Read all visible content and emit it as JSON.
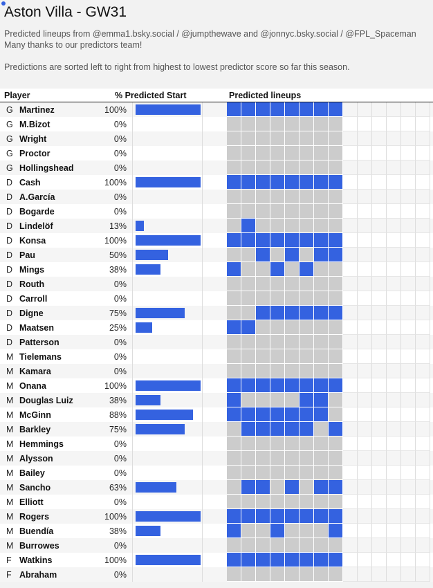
{
  "title": "Aston Villa - GW31",
  "subtitle_1": "Predicted lineups from @emma1.bsky.social / @jumpthewave and @jonnyc.bsky.social / @FPL_Spaceman",
  "subtitle_2": "Many thanks to our predictors team!",
  "subtitle_3": "Predictions are sorted left to right from highest to lowest predictor score so far this season.",
  "headers": {
    "player": "Player",
    "pct": "% Predicted Start",
    "lineups": "Predicted lineups"
  },
  "colors": {
    "accent": "#3462e0",
    "predictor_column": "#cccccc"
  },
  "chart_data": {
    "type": "table",
    "predictor_count": 8,
    "extra_empty_columns": 6,
    "rows": [
      {
        "pos": "G",
        "name": "Martinez",
        "pct": "100%",
        "value": 100,
        "starts": [
          1,
          1,
          1,
          1,
          1,
          1,
          1,
          1
        ]
      },
      {
        "pos": "G",
        "name": "M.Bizot",
        "pct": "0%",
        "value": 0,
        "starts": [
          0,
          0,
          0,
          0,
          0,
          0,
          0,
          0
        ]
      },
      {
        "pos": "G",
        "name": "Wright",
        "pct": "0%",
        "value": 0,
        "starts": [
          0,
          0,
          0,
          0,
          0,
          0,
          0,
          0
        ]
      },
      {
        "pos": "G",
        "name": "Proctor",
        "pct": "0%",
        "value": 0,
        "starts": [
          0,
          0,
          0,
          0,
          0,
          0,
          0,
          0
        ]
      },
      {
        "pos": "G",
        "name": "Hollingshead",
        "pct": "0%",
        "value": 0,
        "starts": [
          0,
          0,
          0,
          0,
          0,
          0,
          0,
          0
        ]
      },
      {
        "pos": "D",
        "name": "Cash",
        "pct": "100%",
        "value": 100,
        "starts": [
          1,
          1,
          1,
          1,
          1,
          1,
          1,
          1
        ]
      },
      {
        "pos": "D",
        "name": "A.García",
        "pct": "0%",
        "value": 0,
        "starts": [
          0,
          0,
          0,
          0,
          0,
          0,
          0,
          0
        ]
      },
      {
        "pos": "D",
        "name": "Bogarde",
        "pct": "0%",
        "value": 0,
        "starts": [
          0,
          0,
          0,
          0,
          0,
          0,
          0,
          0
        ]
      },
      {
        "pos": "D",
        "name": "Lindelöf",
        "pct": "13%",
        "value": 13,
        "starts": [
          0,
          1,
          0,
          0,
          0,
          0,
          0,
          0
        ]
      },
      {
        "pos": "D",
        "name": "Konsa",
        "pct": "100%",
        "value": 100,
        "starts": [
          1,
          1,
          1,
          1,
          1,
          1,
          1,
          1
        ]
      },
      {
        "pos": "D",
        "name": "Pau",
        "pct": "50%",
        "value": 50,
        "starts": [
          0,
          0,
          1,
          0,
          1,
          0,
          1,
          1
        ]
      },
      {
        "pos": "D",
        "name": "Mings",
        "pct": "38%",
        "value": 38,
        "starts": [
          1,
          0,
          0,
          1,
          0,
          1,
          0,
          0
        ]
      },
      {
        "pos": "D",
        "name": "Routh",
        "pct": "0%",
        "value": 0,
        "starts": [
          0,
          0,
          0,
          0,
          0,
          0,
          0,
          0
        ]
      },
      {
        "pos": "D",
        "name": "Carroll",
        "pct": "0%",
        "value": 0,
        "starts": [
          0,
          0,
          0,
          0,
          0,
          0,
          0,
          0
        ]
      },
      {
        "pos": "D",
        "name": "Digne",
        "pct": "75%",
        "value": 75,
        "starts": [
          0,
          0,
          1,
          1,
          1,
          1,
          1,
          1
        ]
      },
      {
        "pos": "D",
        "name": "Maatsen",
        "pct": "25%",
        "value": 25,
        "starts": [
          1,
          1,
          0,
          0,
          0,
          0,
          0,
          0
        ]
      },
      {
        "pos": "D",
        "name": "Patterson",
        "pct": "0%",
        "value": 0,
        "starts": [
          0,
          0,
          0,
          0,
          0,
          0,
          0,
          0
        ]
      },
      {
        "pos": "M",
        "name": "Tielemans",
        "pct": "0%",
        "value": 0,
        "starts": [
          0,
          0,
          0,
          0,
          0,
          0,
          0,
          0
        ]
      },
      {
        "pos": "M",
        "name": "Kamara",
        "pct": "0%",
        "value": 0,
        "starts": [
          0,
          0,
          0,
          0,
          0,
          0,
          0,
          0
        ]
      },
      {
        "pos": "M",
        "name": "Onana",
        "pct": "100%",
        "value": 100,
        "starts": [
          1,
          1,
          1,
          1,
          1,
          1,
          1,
          1
        ]
      },
      {
        "pos": "M",
        "name": "Douglas Luiz",
        "pct": "38%",
        "value": 38,
        "starts": [
          1,
          0,
          0,
          0,
          0,
          1,
          1,
          0
        ]
      },
      {
        "pos": "M",
        "name": "McGinn",
        "pct": "88%",
        "value": 88,
        "starts": [
          1,
          1,
          1,
          1,
          1,
          1,
          1,
          0
        ]
      },
      {
        "pos": "M",
        "name": "Barkley",
        "pct": "75%",
        "value": 75,
        "starts": [
          0,
          1,
          1,
          1,
          1,
          1,
          0,
          1
        ]
      },
      {
        "pos": "M",
        "name": "Hemmings",
        "pct": "0%",
        "value": 0,
        "starts": [
          0,
          0,
          0,
          0,
          0,
          0,
          0,
          0
        ]
      },
      {
        "pos": "M",
        "name": "Alysson",
        "pct": "0%",
        "value": 0,
        "starts": [
          0,
          0,
          0,
          0,
          0,
          0,
          0,
          0
        ]
      },
      {
        "pos": "M",
        "name": "Bailey",
        "pct": "0%",
        "value": 0,
        "starts": [
          0,
          0,
          0,
          0,
          0,
          0,
          0,
          0
        ]
      },
      {
        "pos": "M",
        "name": "Sancho",
        "pct": "63%",
        "value": 63,
        "starts": [
          0,
          1,
          1,
          0,
          1,
          0,
          1,
          1
        ]
      },
      {
        "pos": "M",
        "name": "Elliott",
        "pct": "0%",
        "value": 0,
        "starts": [
          0,
          0,
          0,
          0,
          0,
          0,
          0,
          0
        ]
      },
      {
        "pos": "M",
        "name": "Rogers",
        "pct": "100%",
        "value": 100,
        "starts": [
          1,
          1,
          1,
          1,
          1,
          1,
          1,
          1
        ]
      },
      {
        "pos": "M",
        "name": "Buendía",
        "pct": "38%",
        "value": 38,
        "starts": [
          1,
          0,
          0,
          1,
          0,
          0,
          0,
          1
        ]
      },
      {
        "pos": "M",
        "name": "Burrowes",
        "pct": "0%",
        "value": 0,
        "starts": [
          0,
          0,
          0,
          0,
          0,
          0,
          0,
          0
        ]
      },
      {
        "pos": "F",
        "name": "Watkins",
        "pct": "100%",
        "value": 100,
        "starts": [
          1,
          1,
          1,
          1,
          1,
          1,
          1,
          1
        ]
      },
      {
        "pos": "F",
        "name": "Abraham",
        "pct": "0%",
        "value": 0,
        "starts": [
          0,
          0,
          0,
          0,
          0,
          0,
          0,
          0
        ]
      }
    ]
  }
}
